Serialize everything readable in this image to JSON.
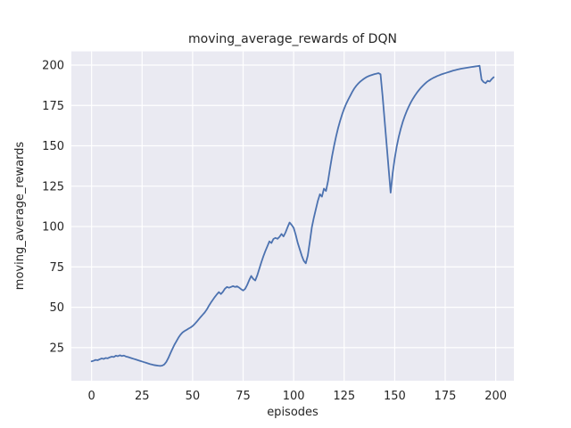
{
  "chart_data": {
    "type": "line",
    "title": "moving_average_rewards of DQN",
    "xlabel": "episodes",
    "ylabel": "moving_average_rewards",
    "x_ticks": [
      0,
      25,
      50,
      75,
      100,
      125,
      150,
      175,
      200
    ],
    "y_ticks": [
      25,
      50,
      75,
      100,
      125,
      150,
      175,
      200
    ],
    "xlim": [
      -10,
      209
    ],
    "ylim": [
      4.5,
      208.5
    ],
    "grid": true,
    "legend_position": "none",
    "style": {
      "plot_background": "#EAEAF2",
      "gridline_color": "#FFFFFF",
      "line_color": "#4C72B0",
      "text_color": "#262626",
      "line_width": 1.8
    },
    "series": [
      {
        "x_start": 0,
        "x_step": 1,
        "values": [
          16.5,
          16.9,
          17.4,
          17.2,
          17.8,
          18.3,
          18.0,
          18.6,
          18.4,
          19.0,
          19.4,
          19.2,
          20.0,
          19.7,
          20.3,
          19.8,
          20.1,
          19.5,
          19.2,
          18.8,
          18.4,
          18.0,
          17.6,
          17.2,
          16.8,
          16.4,
          16.0,
          15.6,
          15.2,
          14.8,
          14.5,
          14.2,
          14.0,
          13.8,
          13.7,
          13.9,
          14.6,
          16.2,
          18.6,
          21.5,
          24.2,
          26.8,
          29.0,
          31.2,
          33.0,
          34.4,
          35.3,
          36.0,
          36.8,
          37.5,
          38.4,
          39.6,
          41.0,
          42.5,
          44.0,
          45.4,
          46.8,
          48.6,
          50.8,
          52.8,
          54.6,
          56.4,
          58.0,
          59.4,
          58.2,
          59.6,
          61.5,
          62.6,
          62.1,
          62.6,
          63.1,
          62.6,
          63.0,
          62.2,
          61.2,
          60.4,
          61.4,
          63.8,
          66.8,
          69.4,
          67.6,
          66.6,
          69.8,
          73.8,
          77.8,
          81.5,
          84.8,
          87.8,
          90.8,
          89.8,
          92.3,
          93.0,
          92.4,
          93.6,
          95.4,
          93.9,
          96.4,
          99.6,
          102.5,
          101.0,
          99.2,
          95.0,
          90.0,
          86.0,
          82.0,
          78.8,
          77.2,
          82.0,
          90.5,
          99.5,
          105.5,
          110.8,
          116.0,
          120.0,
          118.5,
          123.5,
          122.0,
          128.0,
          136.0,
          143.5,
          150.0,
          155.8,
          161.0,
          165.5,
          169.5,
          173.0,
          176.0,
          178.6,
          181.0,
          183.4,
          185.5,
          187.2,
          188.6,
          189.8,
          190.8,
          191.7,
          192.5,
          193.1,
          193.6,
          194.0,
          194.4,
          194.7,
          195.0,
          194.3,
          181.0,
          166.0,
          151.0,
          136.0,
          121.0,
          133.0,
          142.0,
          149.5,
          155.5,
          160.5,
          164.8,
          168.4,
          171.6,
          174.4,
          176.9,
          179.1,
          181.1,
          182.9,
          184.5,
          186.0,
          187.3,
          188.5,
          189.6,
          190.5,
          191.3,
          192.0,
          192.6,
          193.2,
          193.7,
          194.2,
          194.6,
          195.0,
          195.4,
          195.8,
          196.2,
          196.6,
          196.9,
          197.2,
          197.5,
          197.8,
          198.0,
          198.2,
          198.4,
          198.6,
          198.8,
          199.0,
          199.2,
          199.4,
          199.6,
          191.0,
          189.5,
          188.8,
          190.3,
          189.8,
          191.3,
          192.5
        ]
      }
    ]
  }
}
